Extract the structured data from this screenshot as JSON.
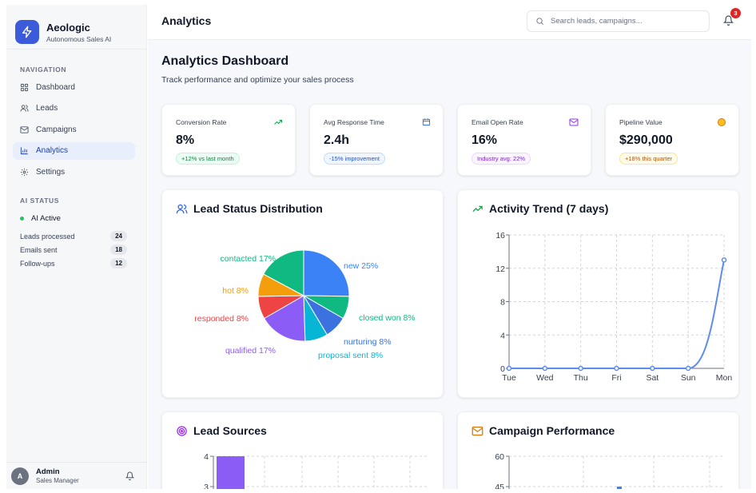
{
  "brand": {
    "name": "Aeologic",
    "subtitle": "Autonomous Sales AI"
  },
  "sidebar": {
    "nav_title": "NAVIGATION",
    "items": [
      {
        "label": "Dashboard",
        "icon": "grid-icon",
        "active": false
      },
      {
        "label": "Leads",
        "icon": "users-icon",
        "active": false
      },
      {
        "label": "Campaigns",
        "icon": "mail-icon",
        "active": false
      },
      {
        "label": "Analytics",
        "icon": "bar-chart-icon",
        "active": true
      },
      {
        "label": "Settings",
        "icon": "gear-icon",
        "active": false
      }
    ],
    "ai_title": "AI STATUS",
    "ai_active": "AI Active",
    "stats": [
      {
        "label": "Leads processed",
        "value": "24"
      },
      {
        "label": "Emails sent",
        "value": "18"
      },
      {
        "label": "Follow-ups",
        "value": "12"
      }
    ],
    "user": {
      "initial": "A",
      "name": "Admin",
      "role": "Sales Manager"
    }
  },
  "header": {
    "title": "Analytics",
    "search_placeholder": "Search leads, campaigns...",
    "notifications": "3"
  },
  "page": {
    "title": "Analytics Dashboard",
    "subtitle": "Track performance and optimize your sales process"
  },
  "metrics": [
    {
      "label": "Conversion Rate",
      "value": "8%",
      "badge": "+12% vs last month",
      "icon": "trending-up-icon",
      "accent": "#16a34a"
    },
    {
      "label": "Avg Response Time",
      "value": "2.4h",
      "badge": "-15% improvement",
      "icon": "calendar-icon",
      "accent": "#2563eb"
    },
    {
      "label": "Email Open Rate",
      "value": "16%",
      "badge": "Industry avg: 22%",
      "icon": "mail-icon",
      "accent": "#9333ea"
    },
    {
      "label": "Pipeline Value",
      "value": "$290,000",
      "badge": "+18% this quarter",
      "icon": "coin-icon",
      "accent": "#d97706"
    }
  ],
  "cards": {
    "lead_status": "Lead Status Distribution",
    "activity": "Activity Trend (7 days)",
    "sources": "Lead Sources",
    "campaigns": "Campaign Performance"
  },
  "chart_data": [
    {
      "type": "pie",
      "title": "Lead Status Distribution",
      "slices": [
        {
          "label": "new 25%",
          "value": 25,
          "color": "#3b82f6"
        },
        {
          "label": "closed won 8%",
          "value": 8,
          "color": "#10b981"
        },
        {
          "label": "nurturing 8%",
          "value": 8,
          "color": "#3b72e0"
        },
        {
          "label": "proposal sent 8%",
          "value": 8,
          "color": "#06b6d4"
        },
        {
          "label": "qualified 17%",
          "value": 17,
          "color": "#8b5cf6"
        },
        {
          "label": "responded 8%",
          "value": 8,
          "color": "#ef4444"
        },
        {
          "label": "hot 8%",
          "value": 8,
          "color": "#f59e0b"
        },
        {
          "label": "contacted 17%",
          "value": 17,
          "color": "#10b981"
        }
      ]
    },
    {
      "type": "line",
      "title": "Activity Trend (7 days)",
      "categories": [
        "Tue",
        "Wed",
        "Thu",
        "Fri",
        "Sat",
        "Sun",
        "Mon"
      ],
      "values": [
        0,
        0,
        0,
        0,
        0,
        0,
        13
      ],
      "ylim": [
        0,
        16
      ],
      "yticks": [
        0,
        4,
        8,
        12,
        16
      ],
      "grid": true,
      "color": "#5b8def"
    },
    {
      "type": "bar",
      "title": "Lead Sources",
      "yticks_visible": [
        3,
        4
      ],
      "values": [
        4
      ],
      "color": "#8b5cf6"
    },
    {
      "type": "bar",
      "title": "Campaign Performance",
      "yticks_visible": [
        45,
        60
      ],
      "color": "#3b82f6"
    }
  ]
}
